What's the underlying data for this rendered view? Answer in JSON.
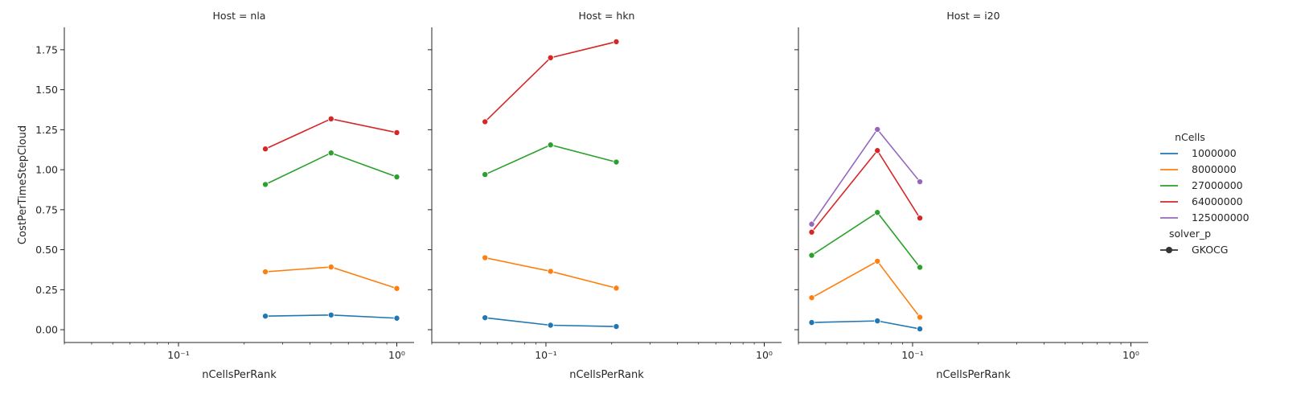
{
  "chart_data": {
    "type": "line",
    "ylabel": "CostPerTimeStepCloud",
    "xlabel": "nCellsPerRank",
    "x_scale": "log",
    "xlim": [
      0.03,
      1.2
    ],
    "ylim": [
      -0.08,
      1.89
    ],
    "x_ticks": [
      {
        "value": 0.1,
        "label": "10⁻¹"
      },
      {
        "value": 1,
        "label": "10⁰"
      }
    ],
    "y_ticks": [
      {
        "value": 0,
        "label": "0.00"
      },
      {
        "value": 0.25,
        "label": "0.25"
      },
      {
        "value": 0.5,
        "label": "0.50"
      },
      {
        "value": 0.75,
        "label": "0.75"
      },
      {
        "value": 1,
        "label": "1.00"
      },
      {
        "value": 1.25,
        "label": "1.25"
      },
      {
        "value": 1.5,
        "label": "1.50"
      },
      {
        "value": 1.75,
        "label": "1.75"
      }
    ],
    "legend": {
      "placement": "right",
      "hue_title": "nCells",
      "style_title": "solver_p",
      "style_entries": [
        "GKOCG"
      ],
      "hue_entries": [
        {
          "label": "1000000",
          "color": "#1f77b4"
        },
        {
          "label": "8000000",
          "color": "#ff7f0e"
        },
        {
          "label": "27000000",
          "color": "#2ca02c"
        },
        {
          "label": "64000000",
          "color": "#d62728"
        },
        {
          "label": "125000000",
          "color": "#9467bd"
        }
      ]
    },
    "panels": [
      {
        "title": "Host = nla",
        "x": [
          0.25,
          0.5,
          1.0
        ],
        "series": [
          {
            "name": "1000000",
            "values": [
              0.085,
              0.092,
              0.072
            ]
          },
          {
            "name": "8000000",
            "values": [
              0.362,
              0.392,
              0.258
            ]
          },
          {
            "name": "27000000",
            "values": [
              0.908,
              1.105,
              0.955
            ]
          },
          {
            "name": "64000000",
            "values": [
              1.13,
              1.318,
              1.232
            ]
          }
        ]
      },
      {
        "title": "Host = hkn",
        "x": [
          0.0526,
          0.105,
          0.21
        ],
        "series": [
          {
            "name": "1000000",
            "values": [
              0.075,
              0.028,
              0.02
            ]
          },
          {
            "name": "8000000",
            "values": [
              0.45,
              0.365,
              0.26
            ]
          },
          {
            "name": "27000000",
            "values": [
              0.97,
              1.155,
              1.048
            ]
          },
          {
            "name": "64000000",
            "values": [
              1.3,
              1.7,
              1.8
            ]
          }
        ]
      },
      {
        "title": "Host = i20",
        "x": [
          0.0345,
          0.069,
          0.108
        ],
        "series": [
          {
            "name": "1000000",
            "values": [
              0.045,
              0.055,
              0.005
            ]
          },
          {
            "name": "8000000",
            "values": [
              0.2,
              0.428,
              0.078
            ]
          },
          {
            "name": "27000000",
            "values": [
              0.465,
              0.733,
              0.39
            ]
          },
          {
            "name": "64000000",
            "values": [
              0.61,
              1.12,
              0.698
            ]
          },
          {
            "name": "125000000",
            "values": [
              0.66,
              1.252,
              0.925
            ]
          }
        ]
      }
    ]
  }
}
